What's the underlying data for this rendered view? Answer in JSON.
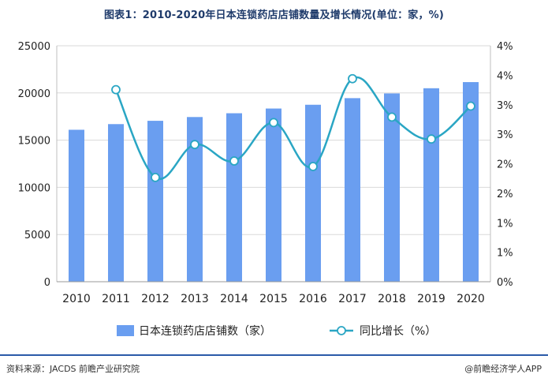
{
  "title": "图表1：2010-2020年日本连锁药店店铺数量及增长情况(单位：家，%)",
  "chart_data": {
    "type": "bar",
    "categories": [
      "2010",
      "2011",
      "2012",
      "2013",
      "2014",
      "2015",
      "2016",
      "2017",
      "2018",
      "2019",
      "2020"
    ],
    "series": [
      {
        "name": "日本连锁药店店铺数（家）",
        "type": "bar",
        "axis": "left",
        "values": [
          16100,
          16700,
          17050,
          17450,
          17850,
          18350,
          18750,
          19450,
          19950,
          20500,
          21150
        ],
        "color": "#6a9ef0"
      },
      {
        "name": "同比增长（%）",
        "type": "line",
        "axis": "right",
        "values": [
          null,
          3.5,
          1.9,
          2.5,
          2.2,
          2.9,
          2.1,
          3.7,
          3.0,
          2.6,
          3.2
        ],
        "color": "#2aa6c4"
      }
    ],
    "ylim_left": [
      0,
      25000
    ],
    "yticks_left": [
      "0",
      "5000",
      "10000",
      "15000",
      "20000",
      "25000"
    ],
    "ylim_right": [
      0,
      4.3
    ],
    "yticks_right": [
      "0%",
      "1%",
      "1%",
      "2%",
      "2%",
      "3%",
      "3%",
      "4%",
      "4%"
    ],
    "grid": true,
    "legend_position": "bottom"
  },
  "footer": {
    "source": "资料来源：JACDS 前瞻产业研究院",
    "brand": "@前瞻经济学人APP"
  }
}
